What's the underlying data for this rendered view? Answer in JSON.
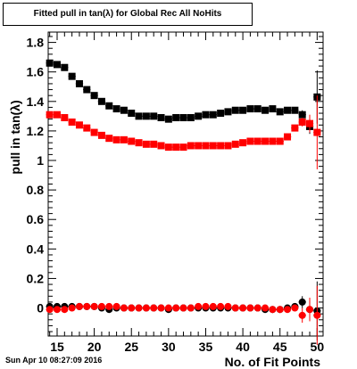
{
  "title": "Fitted pull in tan(λ) for Global Rec All NoHits",
  "datestamp": "Sun Apr 10 08:27:09 2016",
  "chart_data": {
    "type": "scatter",
    "title": "Fitted pull in tan(λ) for Global Rec All NoHits",
    "xlabel": "No. of Fit Points",
    "ylabel": "pull in tan(λ)",
    "xlim": [
      13.8,
      50.8
    ],
    "ylim": [
      -0.19,
      1.87
    ],
    "xticks": [
      "15",
      "20",
      "25",
      "30",
      "35",
      "40",
      "45",
      "50"
    ],
    "yticks": [
      "0",
      "0.2",
      "0.4",
      "0.6",
      "0.8",
      "1",
      "1.2",
      "1.4",
      "1.6",
      "1.8"
    ],
    "grid": false,
    "legend": "none",
    "series": [
      {
        "color": "#000000",
        "marker": "square",
        "x": [
          14,
          15,
          16,
          17,
          18,
          19,
          20,
          21,
          22,
          23,
          24,
          25,
          26,
          27,
          28,
          29,
          30,
          31,
          32,
          33,
          34,
          35,
          36,
          37,
          38,
          39,
          40,
          41,
          42,
          43,
          44,
          45,
          46,
          47,
          48,
          49,
          50
        ],
        "y": [
          1.66,
          1.65,
          1.63,
          1.57,
          1.52,
          1.48,
          1.44,
          1.4,
          1.37,
          1.35,
          1.34,
          1.32,
          1.3,
          1.3,
          1.3,
          1.29,
          1.28,
          1.29,
          1.29,
          1.29,
          1.3,
          1.31,
          1.31,
          1.32,
          1.33,
          1.34,
          1.34,
          1.35,
          1.35,
          1.34,
          1.35,
          1.33,
          1.34,
          1.34,
          1.31,
          1.23,
          1.43
        ],
        "err": [
          0.01,
          0.01,
          0.01,
          0.01,
          0.01,
          0.01,
          0.01,
          0.01,
          0.01,
          0.01,
          0.01,
          0.01,
          0.01,
          0.01,
          0.01,
          0.01,
          0.01,
          0.01,
          0.01,
          0.01,
          0.01,
          0.01,
          0.01,
          0.01,
          0.01,
          0.01,
          0.01,
          0.01,
          0.01,
          0.01,
          0.01,
          0.01,
          0.01,
          0.01,
          0.03,
          0.05,
          0.18
        ]
      },
      {
        "color": "#ff0000",
        "marker": "square",
        "x": [
          14,
          15,
          16,
          17,
          18,
          19,
          20,
          21,
          22,
          23,
          24,
          25,
          26,
          27,
          28,
          29,
          30,
          31,
          32,
          33,
          34,
          35,
          36,
          37,
          38,
          39,
          40,
          41,
          42,
          43,
          44,
          45,
          46,
          47,
          48,
          49,
          50
        ],
        "y": [
          1.31,
          1.31,
          1.29,
          1.26,
          1.24,
          1.22,
          1.19,
          1.17,
          1.15,
          1.14,
          1.14,
          1.13,
          1.12,
          1.11,
          1.11,
          1.1,
          1.09,
          1.09,
          1.09,
          1.1,
          1.1,
          1.1,
          1.1,
          1.1,
          1.1,
          1.11,
          1.12,
          1.13,
          1.13,
          1.13,
          1.13,
          1.13,
          1.16,
          1.22,
          1.26,
          1.25,
          1.19
        ],
        "err": [
          0.01,
          0.01,
          0.01,
          0.01,
          0.01,
          0.01,
          0.01,
          0.01,
          0.01,
          0.01,
          0.01,
          0.01,
          0.01,
          0.01,
          0.01,
          0.01,
          0.01,
          0.01,
          0.01,
          0.01,
          0.01,
          0.01,
          0.01,
          0.01,
          0.01,
          0.01,
          0.01,
          0.01,
          0.01,
          0.01,
          0.01,
          0.01,
          0.01,
          0.02,
          0.03,
          0.06,
          0.25
        ]
      },
      {
        "color": "#000000",
        "marker": "circle",
        "x": [
          14,
          15,
          16,
          17,
          18,
          19,
          20,
          21,
          22,
          23,
          24,
          25,
          26,
          27,
          28,
          29,
          30,
          31,
          32,
          33,
          34,
          35,
          36,
          37,
          38,
          39,
          40,
          41,
          42,
          43,
          44,
          45,
          46,
          47,
          48,
          49,
          50
        ],
        "y": [
          0.01,
          0.01,
          0.01,
          0.01,
          0.01,
          0.01,
          0.01,
          0.0,
          -0.01,
          0.0,
          0.0,
          0.0,
          0.0,
          0.0,
          0.0,
          0.0,
          -0.01,
          0.0,
          0.0,
          0.0,
          0.0,
          0.0,
          0.0,
          0.0,
          0.0,
          0.0,
          0.0,
          0.0,
          0.0,
          -0.01,
          -0.01,
          -0.01,
          0.0,
          0.01,
          0.04,
          -0.01,
          -0.02
        ],
        "err": [
          0.01,
          0.01,
          0.01,
          0.01,
          0.01,
          0.01,
          0.01,
          0.01,
          0.01,
          0.01,
          0.01,
          0.01,
          0.01,
          0.01,
          0.01,
          0.01,
          0.01,
          0.01,
          0.01,
          0.01,
          0.01,
          0.01,
          0.01,
          0.01,
          0.01,
          0.01,
          0.01,
          0.01,
          0.01,
          0.01,
          0.01,
          0.01,
          0.01,
          0.02,
          0.04,
          0.06,
          0.2
        ]
      },
      {
        "color": "#ff0000",
        "marker": "circle",
        "x": [
          14,
          15,
          16,
          17,
          18,
          19,
          20,
          21,
          22,
          23,
          24,
          25,
          26,
          27,
          28,
          29,
          30,
          31,
          32,
          33,
          34,
          35,
          36,
          37,
          38,
          39,
          40,
          41,
          42,
          43,
          44,
          45,
          46,
          47,
          48,
          49,
          50
        ],
        "y": [
          -0.01,
          -0.01,
          -0.01,
          0.0,
          0.01,
          0.01,
          0.01,
          0.01,
          0.01,
          0.01,
          0.0,
          0.0,
          0.0,
          0.0,
          0.0,
          0.0,
          0.0,
          0.0,
          0.0,
          0.0,
          0.01,
          0.01,
          0.01,
          0.01,
          0.01,
          0.0,
          0.0,
          0.0,
          0.0,
          0.0,
          -0.01,
          -0.01,
          -0.01,
          0.0,
          -0.05,
          -0.01,
          -0.05
        ],
        "err": [
          0.01,
          0.01,
          0.01,
          0.01,
          0.01,
          0.01,
          0.01,
          0.01,
          0.01,
          0.01,
          0.01,
          0.01,
          0.01,
          0.01,
          0.01,
          0.01,
          0.01,
          0.01,
          0.01,
          0.01,
          0.01,
          0.01,
          0.01,
          0.01,
          0.01,
          0.01,
          0.01,
          0.01,
          0.01,
          0.01,
          0.01,
          0.01,
          0.01,
          0.02,
          0.05,
          0.08,
          0.2
        ]
      }
    ]
  }
}
